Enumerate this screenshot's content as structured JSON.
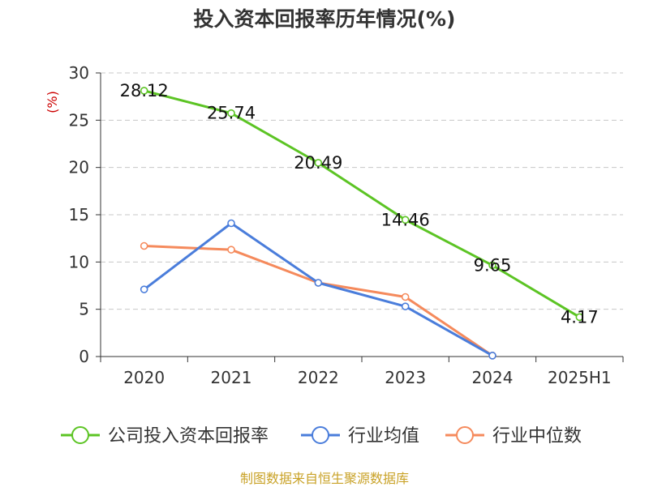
{
  "title": "投入资本回报率历年情况(%)",
  "source": "制图数据来自恒生聚源数据库",
  "colors": {
    "company": "#5cc424",
    "industry_avg": "#4a7ddb",
    "industry_median": "#f58a5c",
    "unit": "#cc0000",
    "source": "#c9a227",
    "text": "#333333",
    "grid": "#c8c8c8",
    "axis": "#333333"
  },
  "chart_data": {
    "type": "line",
    "title": "投入资本回报率历年情况(%)",
    "unit": "(%)",
    "categories": [
      "2020",
      "2021",
      "2022",
      "2023",
      "2024",
      "2025H1"
    ],
    "ylim": [
      0,
      30
    ],
    "yticks": [
      0,
      5,
      10,
      15,
      20,
      25,
      30
    ],
    "grid": true,
    "legend_position": "bottom",
    "series": [
      {
        "name": "公司投入资本回报率",
        "color": "#5cc424",
        "values": [
          28.12,
          25.74,
          20.49,
          14.46,
          9.65,
          4.17
        ],
        "labels": [
          "28.12",
          "25.74",
          "20.49",
          "14.46",
          "9.65",
          "4.17"
        ]
      },
      {
        "name": "行业均值",
        "color": "#4a7ddb",
        "values": [
          7.1,
          14.1,
          7.8,
          5.3,
          0.1,
          null
        ]
      },
      {
        "name": "行业中位数",
        "color": "#f58a5c",
        "values": [
          11.7,
          11.3,
          7.8,
          6.3,
          0.1,
          null
        ]
      }
    ]
  }
}
